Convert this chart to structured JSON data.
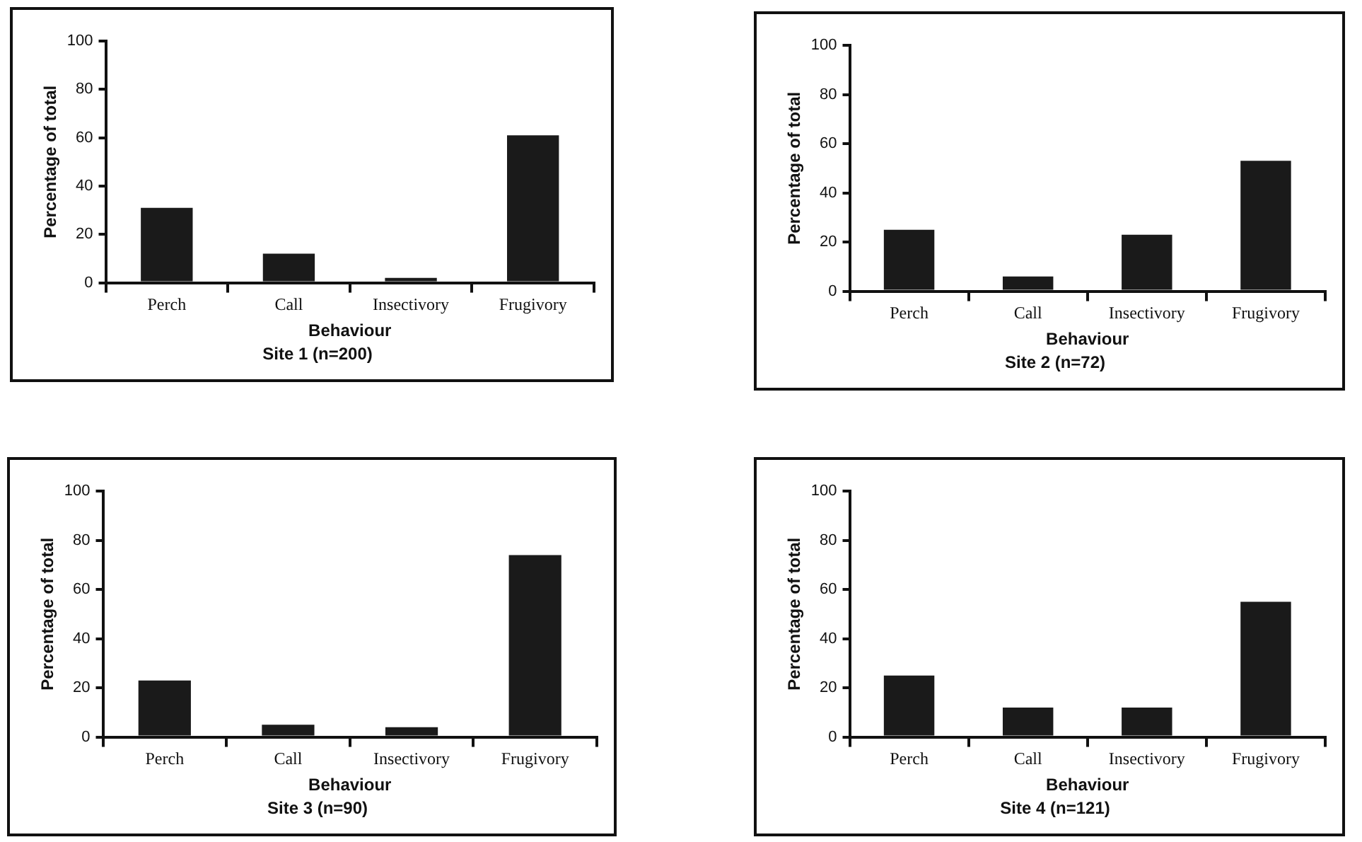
{
  "chart_data": [
    {
      "type": "bar",
      "title": "Site 1 (n=200)",
      "xlabel": "Behaviour",
      "ylabel": "Percentage of total",
      "categories": [
        "Perch",
        "Call",
        "Insectivory",
        "Frugivory"
      ],
      "values": [
        31,
        12,
        2,
        61
      ],
      "color": "#1a1a1a",
      "ylim": [
        0,
        100
      ],
      "yticks": [
        0,
        20,
        40,
        60,
        80,
        100
      ],
      "grid": false,
      "legend": false
    },
    {
      "type": "bar",
      "title": "Site 2 (n=72)",
      "xlabel": "Behaviour",
      "ylabel": "Percentage of total",
      "categories": [
        "Perch",
        "Call",
        "Insectivory",
        "Frugivory"
      ],
      "values": [
        25,
        6,
        23,
        53
      ],
      "color": "#1a1a1a",
      "ylim": [
        0,
        100
      ],
      "yticks": [
        0,
        20,
        40,
        60,
        80,
        100
      ],
      "grid": false,
      "legend": false
    },
    {
      "type": "bar",
      "title": "Site 3 (n=90)",
      "xlabel": "Behaviour",
      "ylabel": "Percentage of total",
      "categories": [
        "Perch",
        "Call",
        "Insectivory",
        "Frugivory"
      ],
      "values": [
        23,
        5,
        4,
        74
      ],
      "color": "#1a1a1a",
      "ylim": [
        0,
        100
      ],
      "yticks": [
        0,
        20,
        40,
        60,
        80,
        100
      ],
      "grid": false,
      "legend": false
    },
    {
      "type": "bar",
      "title": "Site 4 (n=121)",
      "xlabel": "Behaviour",
      "ylabel": "Percentage of total",
      "categories": [
        "Perch",
        "Call",
        "Insectivory",
        "Frugivory"
      ],
      "values": [
        25,
        12,
        12,
        55
      ],
      "color": "#1a1a1a",
      "ylim": [
        0,
        100
      ],
      "yticks": [
        0,
        20,
        40,
        60,
        80,
        100
      ],
      "grid": false,
      "legend": false
    }
  ]
}
